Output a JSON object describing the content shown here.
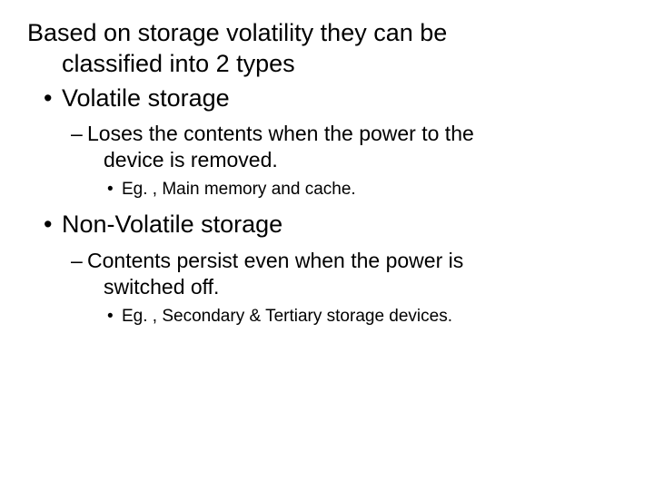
{
  "text_color": "#000000",
  "background_color": "#ffffff",
  "font_family": "Arial",
  "intro": {
    "line1": "Based on storage volatility they can be",
    "line2": "classified into 2 types",
    "fontsize": 27
  },
  "bullets": {
    "level1_glyph": "•",
    "level2_glyph": "–",
    "level3_glyph": "•"
  },
  "items": [
    {
      "label": "Volatile storage",
      "sub": {
        "line1": "Loses the contents when the power to the",
        "line2": "device is removed.",
        "example": "Eg. , Main memory and cache."
      }
    },
    {
      "label": "Non-Volatile storage",
      "sub": {
        "line1": "Contents persist even when the power is",
        "line2": "switched off.",
        "example": "Eg. , Secondary & Tertiary storage devices."
      }
    }
  ]
}
